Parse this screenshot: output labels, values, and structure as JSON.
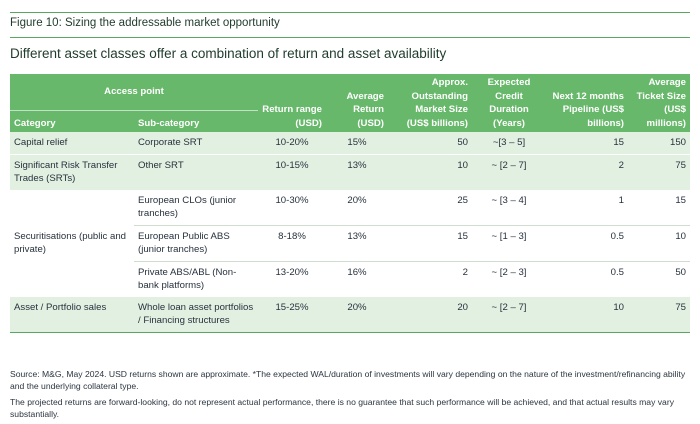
{
  "figure_title": "Figure 10: Sizing the addressable market opportunity",
  "subtitle": "Different asset classes offer a combination of return and asset availability",
  "header": {
    "access_point": "Access point",
    "category": "Category",
    "sub_category": "Sub-category",
    "return_range": "Return range (USD)",
    "average_return": "Average Return (USD)",
    "market_size": "Approx. Outstanding Market Size (US$ billions)",
    "credit_duration": "Expected Credit Duration (Years)",
    "pipeline": "Next 12 months Pipeline (US$ billions)",
    "ticket_size": "Average Ticket Size (US$ millions)"
  },
  "rows": [
    {
      "category": "Capital relief",
      "sub": "Corporate SRT",
      "range": "10-20%",
      "avg": "15%",
      "market": "50",
      "duration": "~[3 – 5]",
      "pipeline": "15",
      "ticket": "150"
    },
    {
      "category": "Significant Risk Transfer Trades (SRTs)",
      "sub": "Other SRT",
      "range": "10-15%",
      "avg": "13%",
      "market": "10",
      "duration": "~ [2 – 7]",
      "pipeline": "2",
      "ticket": "75"
    },
    {
      "category": "Securitisations (public and private)",
      "sub": "European CLOs (junior tranches)",
      "range": "10-30%",
      "avg": "20%",
      "market": "25",
      "duration": "~ [3 – 4]",
      "pipeline": "1",
      "ticket": "15"
    },
    {
      "category": "",
      "sub": "European Public ABS (junior tranches)",
      "range": "8-18%",
      "avg": "13%",
      "market": "15",
      "duration": "~ [1 – 3]",
      "pipeline": "0.5",
      "ticket": "10"
    },
    {
      "category": "",
      "sub": "Private ABS/ABL (Non-bank platforms)",
      "range": "13-20%",
      "avg": "16%",
      "market": "2",
      "duration": "~ [2 – 3]",
      "pipeline": "0.5",
      "ticket": "50"
    },
    {
      "category": "Asset / Portfolio sales",
      "sub": "Whole loan asset portfolios / Financing structures",
      "range": "15-25%",
      "avg": "20%",
      "market": "20",
      "duration": "~ [2 – 7]",
      "pipeline": "10",
      "ticket": "75"
    }
  ],
  "notes": [
    "Source: M&G, May 2024. USD returns shown are approximate. *The expected WAL/duration of investments will vary depending on the nature of the investment/refinancing ability and the underlying collateral type.",
    "The projected returns are forward-looking, do not represent actual performance, there is no guarantee that such performance will be achieved, and that actual results may vary substantially."
  ]
}
